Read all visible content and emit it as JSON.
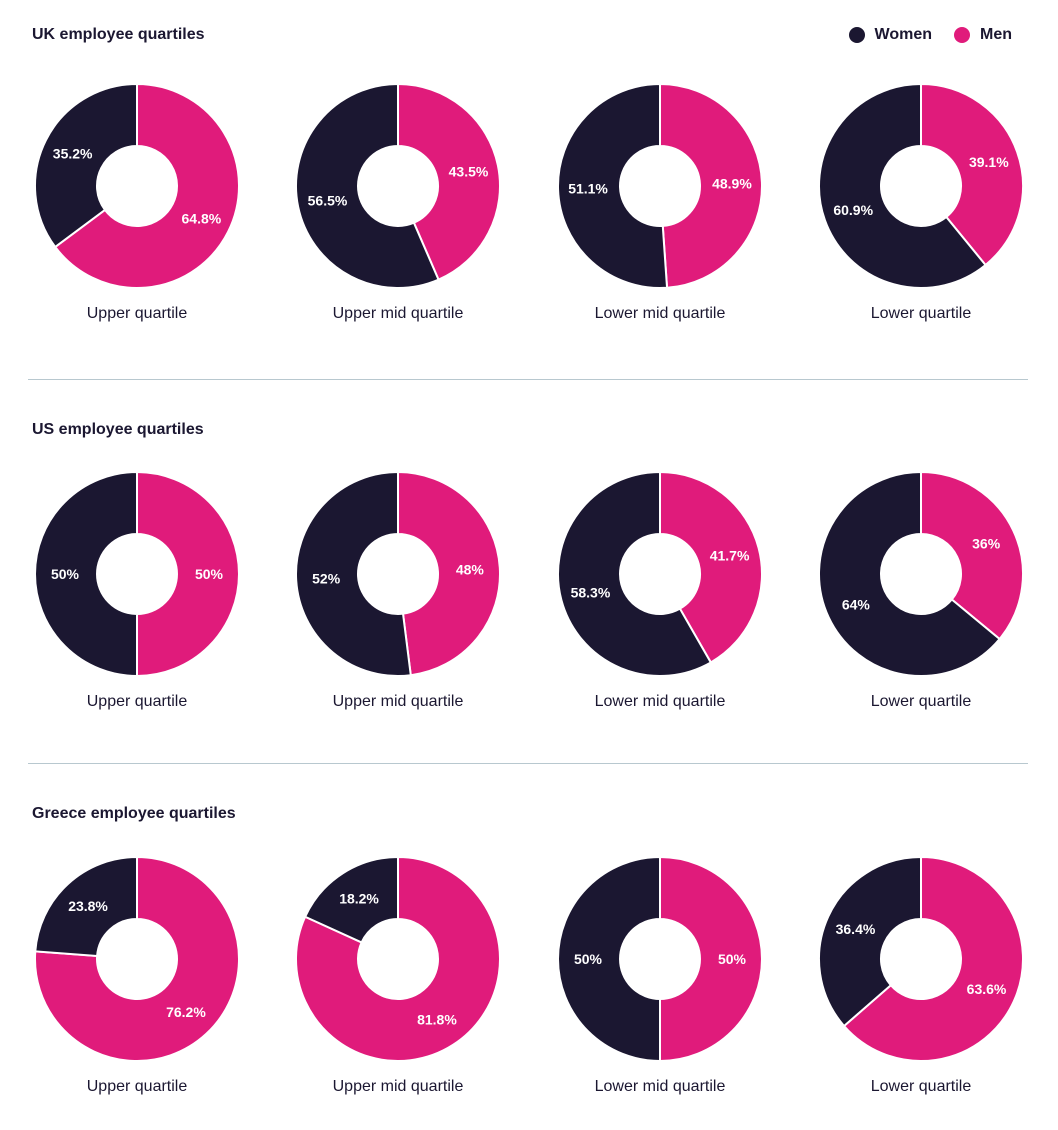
{
  "legend": [
    {
      "name": "Women",
      "color": "#1b1731"
    },
    {
      "name": "Men",
      "color": "#e01b7b"
    }
  ],
  "colors": {
    "women": "#1b1731",
    "men": "#e01b7b"
  },
  "chart_data": [
    {
      "type": "pie",
      "title": "UK employee quartiles",
      "charts": [
        {
          "label": "Upper quartile",
          "women": 35.2,
          "men": 64.8,
          "women_label": "35.2%",
          "men_label": "64.8%"
        },
        {
          "label": "Upper mid quartile",
          "women": 56.5,
          "men": 43.5,
          "women_label": "56.5%",
          "men_label": "43.5%"
        },
        {
          "label": "Lower mid quartile",
          "women": 51.1,
          "men": 48.9,
          "women_label": "51.1%",
          "men_label": "48.9%"
        },
        {
          "label": "Lower quartile",
          "women": 60.9,
          "men": 39.1,
          "women_label": "60.9%",
          "men_label": "39.1%"
        }
      ]
    },
    {
      "type": "pie",
      "title": "US employee quartiles",
      "charts": [
        {
          "label": "Upper quartile",
          "women": 50,
          "men": 50,
          "women_label": "50%",
          "men_label": "50%"
        },
        {
          "label": "Upper mid quartile",
          "women": 52,
          "men": 48,
          "women_label": "52%",
          "men_label": "48%"
        },
        {
          "label": "Lower mid quartile",
          "women": 58.3,
          "men": 41.7,
          "women_label": "58.3%",
          "men_label": "41.7%"
        },
        {
          "label": "Lower quartile",
          "women": 64,
          "men": 36,
          "women_label": "64%",
          "men_label": "36%"
        }
      ]
    },
    {
      "type": "pie",
      "title": "Greece employee quartiles",
      "charts": [
        {
          "label": "Upper quartile",
          "women": 23.8,
          "men": 76.2,
          "women_label": "23.8%",
          "men_label": "76.2%"
        },
        {
          "label": "Upper mid quartile",
          "women": 18.2,
          "men": 81.8,
          "women_label": "18.2%",
          "men_label": "81.8%"
        },
        {
          "label": "Lower mid quartile",
          "women": 50,
          "men": 50,
          "women_label": "50%",
          "men_label": "50%"
        },
        {
          "label": "Lower quartile",
          "women": 36.4,
          "men": 63.6,
          "women_label": "36.4%",
          "men_label": "63.6%"
        }
      ]
    }
  ]
}
